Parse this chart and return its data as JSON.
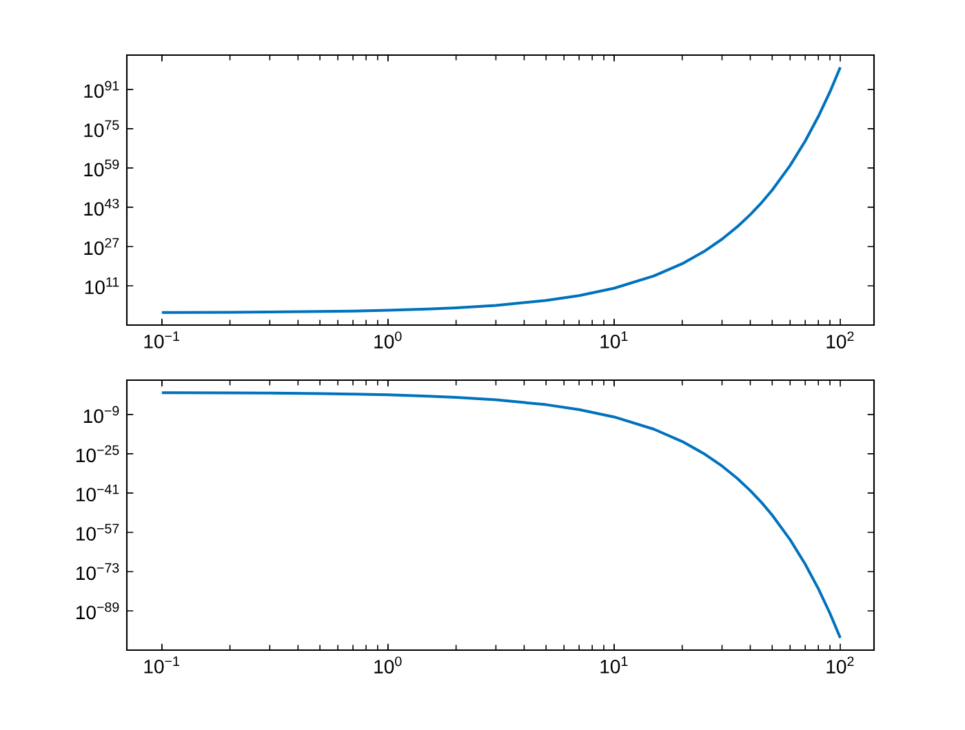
{
  "chart_data": [
    {
      "type": "line",
      "log": "xy",
      "color": "#0072bd",
      "x": [
        0.1,
        0.2,
        0.3,
        0.5,
        0.7,
        1,
        1.5,
        2,
        3,
        5,
        7,
        10,
        15,
        20,
        25,
        30,
        35,
        40,
        45,
        50,
        60,
        70,
        80,
        90,
        100
      ],
      "values": [
        1.26,
        1.6,
        2,
        3.2,
        5,
        10,
        32,
        100,
        1000,
        100000.0,
        10000000.0,
        10000000000.0,
        1000000000000000.0,
        1e+20,
        1e+25,
        1e+30,
        1e+35,
        1e+40,
        1e+45,
        1e+50,
        1e+60,
        1e+70,
        1e+80,
        1e+90,
        1e+100
      ],
      "xlim": [
        0.07,
        141
      ],
      "ylim": [
        1e-05,
        1e+105
      ],
      "xticks": [
        {
          "value": 0.1,
          "label": "10$^{−1}$"
        },
        {
          "value": 1,
          "label": "10$^{0}$"
        },
        {
          "value": 10,
          "label": "10$^{1}$"
        },
        {
          "value": 100,
          "label": "10$^{2}$"
        }
      ],
      "yticks": [
        {
          "value": 100000000000.0,
          "label": "10$^{11}$"
        },
        {
          "value": 1e+27,
          "label": "10$^{27}$"
        },
        {
          "value": 1e+43,
          "label": "10$^{43}$"
        },
        {
          "value": 1e+59,
          "label": "10$^{59}$"
        },
        {
          "value": 1e+75,
          "label": "10$^{75}$"
        },
        {
          "value": 1e+91,
          "label": "10$^{91}$"
        }
      ]
    },
    {
      "type": "line",
      "log": "xy",
      "color": "#0072bd",
      "x": [
        0.1,
        0.2,
        0.3,
        0.5,
        0.7,
        1,
        1.5,
        2,
        3,
        5,
        7,
        10,
        15,
        20,
        25,
        30,
        35,
        40,
        45,
        50,
        60,
        70,
        80,
        90,
        100
      ],
      "values": [
        0.79,
        0.63,
        0.5,
        0.32,
        0.2,
        0.1,
        0.032,
        0.01,
        0.001,
        1e-05,
        1e-07,
        1e-10,
        1e-15,
        1e-20,
        1e-25,
        1e-30,
        1e-35,
        1e-40,
        1e-45,
        1e-50,
        1e-60,
        1e-70,
        1e-80,
        1e-90,
        1e-100
      ],
      "xlim": [
        0.07,
        141
      ],
      "ylim": [
        1e-105,
        100000.0
      ],
      "xticks": [
        {
          "value": 0.1,
          "label": "10$^{−1}$"
        },
        {
          "value": 1,
          "label": "10$^{0}$"
        },
        {
          "value": 10,
          "label": "10$^{1}$"
        },
        {
          "value": 100,
          "label": "10$^{2}$"
        }
      ],
      "yticks": [
        {
          "value": 1e-89,
          "label": "10$^{−89}$"
        },
        {
          "value": 1e-73,
          "label": "10$^{−73}$"
        },
        {
          "value": 1e-57,
          "label": "10$^{−57}$"
        },
        {
          "value": 1e-41,
          "label": "10$^{−41}$"
        },
        {
          "value": 1e-25,
          "label": "10$^{−25}$"
        },
        {
          "value": 1e-09,
          "label": "10$^{−9}$"
        }
      ]
    }
  ]
}
